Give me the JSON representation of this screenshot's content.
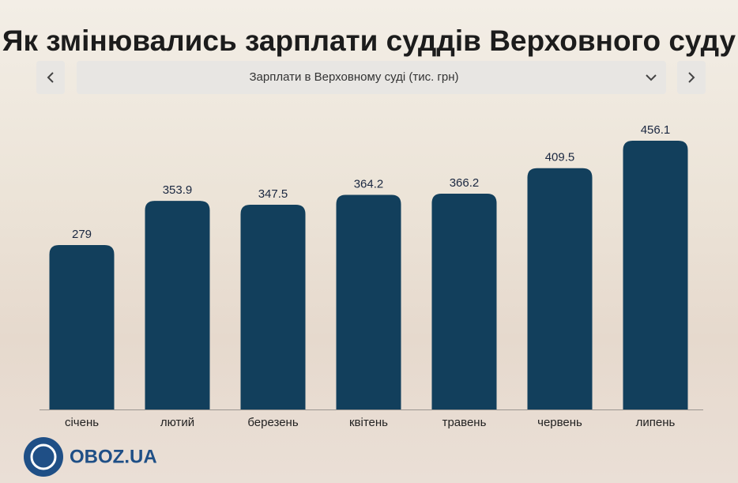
{
  "chart_data": {
    "type": "bar",
    "title": "Як змінювались зарплати суддів Верховного суду",
    "subtitle": "Зарплати в Верховному суді (тис. грн)",
    "categories": [
      "січень",
      "лютий",
      "березень",
      "квітень",
      "травень",
      "червень",
      "липень"
    ],
    "values": [
      279,
      353.9,
      347.5,
      364.2,
      366.2,
      409.5,
      456.1
    ],
    "color": "#123f5c"
  },
  "logo": "OBOZ.UA"
}
